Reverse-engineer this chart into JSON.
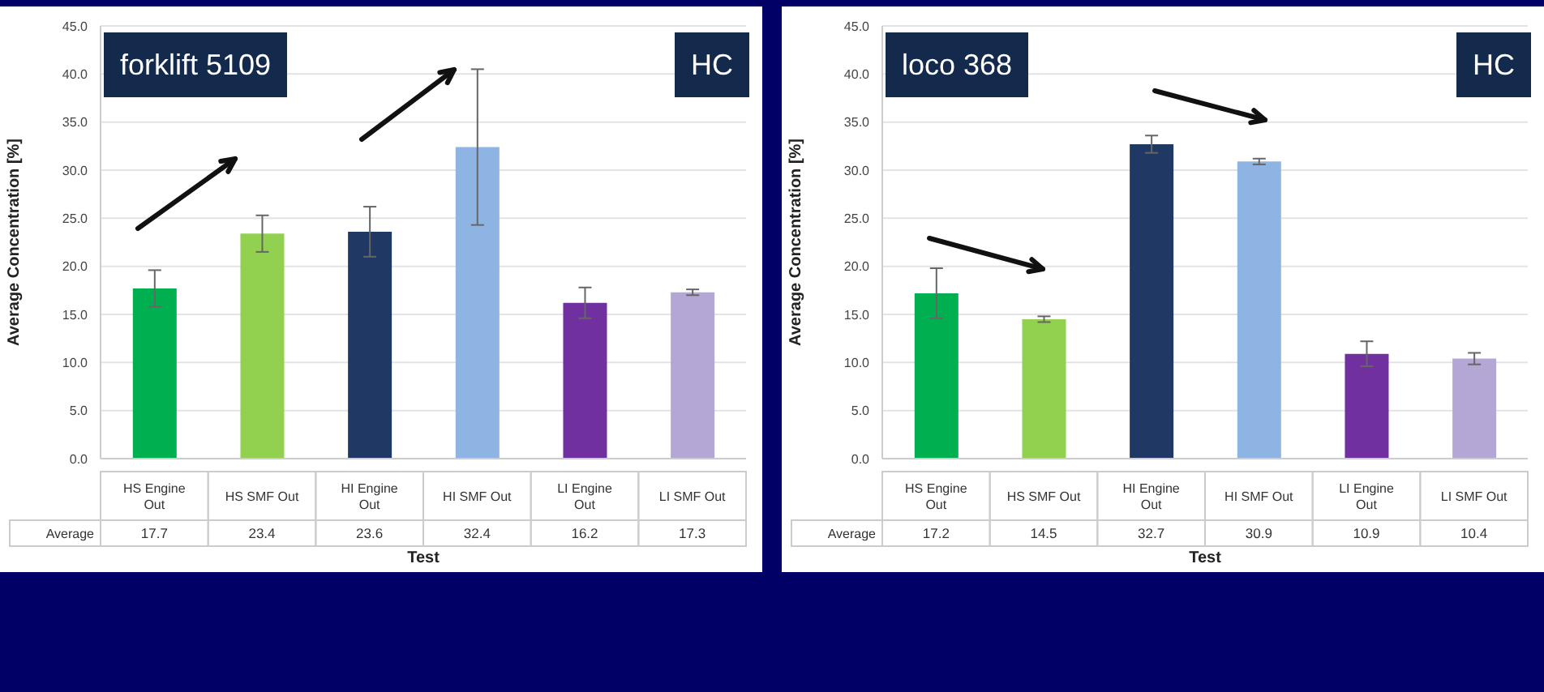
{
  "chart_data": [
    {
      "type": "bar",
      "xlabel": "Test",
      "ylabel": "Average Concentration [%]",
      "categories": [
        "HS Engine Out",
        "HS SMF Out",
        "HI Engine Out",
        "HI SMF Out",
        "LI Engine Out",
        "LI SMF Out"
      ],
      "series": [
        {
          "name": "Average",
          "colors": [
            "#00b050",
            "#92d050",
            "#1f3864",
            "#8eb4e3",
            "#7030a0",
            "#b4a7d6"
          ],
          "values": [
            17.7,
            23.4,
            23.6,
            32.4,
            16.2,
            17.3
          ],
          "errors": [
            1.9,
            1.9,
            2.6,
            8.1,
            1.6,
            0.3
          ]
        }
      ],
      "ylim": [
        0,
        45
      ],
      "yticks": [
        {
          "value": 0,
          "label": "0.0"
        },
        {
          "value": 5,
          "label": "5.0"
        },
        {
          "value": 10,
          "label": "10.0"
        },
        {
          "value": 15,
          "label": "15.0"
        },
        {
          "value": 20,
          "label": "20.0"
        },
        {
          "value": 25,
          "label": "25.0"
        },
        {
          "value": 30,
          "label": "30.0"
        },
        {
          "value": 35,
          "label": "35.0"
        },
        {
          "value": 40,
          "label": "40.0"
        },
        {
          "value": 45,
          "label": "45.0"
        }
      ],
      "grid": "y",
      "data_labels": true,
      "annotations": [
        "forklift 5109",
        "HC"
      ]
    },
    {
      "type": "bar",
      "xlabel": "Test",
      "ylabel": "Average Concentration [%]",
      "categories": [
        "HS Engine Out",
        "HS SMF Out",
        "HI Engine Out",
        "HI SMF Out",
        "LI Engine Out",
        "LI SMF Out"
      ],
      "series": [
        {
          "name": "Average",
          "colors": [
            "#00b050",
            "#92d050",
            "#1f3864",
            "#8eb4e3",
            "#7030a0",
            "#b4a7d6"
          ],
          "values": [
            17.2,
            14.5,
            32.7,
            30.9,
            10.9,
            10.4
          ],
          "errors": [
            2.6,
            0.3,
            0.9,
            0.3,
            1.3,
            0.6
          ]
        }
      ],
      "ylim": [
        0,
        45
      ],
      "yticks": [
        {
          "value": 0,
          "label": "0.0"
        },
        {
          "value": 5,
          "label": "5.0"
        },
        {
          "value": 10,
          "label": "10.0"
        },
        {
          "value": 15,
          "label": "15.0"
        },
        {
          "value": 20,
          "label": "20.0"
        },
        {
          "value": 25,
          "label": "25.0"
        },
        {
          "value": 30,
          "label": "30.0"
        },
        {
          "value": 35,
          "label": "35.0"
        },
        {
          "value": 40,
          "label": "40.0"
        },
        {
          "value": 45,
          "label": "45.0"
        }
      ],
      "grid": "y",
      "data_labels": true,
      "annotations": [
        "loco 368",
        "HC"
      ]
    }
  ]
}
